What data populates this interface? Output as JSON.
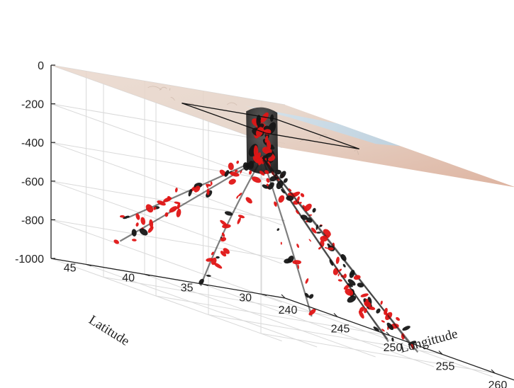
{
  "chart_data": {
    "type": "3d-surface-volume",
    "title": "",
    "xlabel": "Longittude",
    "ylabel": "Latitude",
    "zlabel": "",
    "xlim": [
      240,
      262
    ],
    "ylim": [
      28,
      48
    ],
    "zlim": [
      -1000,
      0
    ],
    "x_ticks": [
      "240",
      "245",
      "250",
      "255",
      "260"
    ],
    "y_ticks": [
      "30",
      "35",
      "40",
      "45"
    ],
    "z_ticks": [
      "0",
      "-200",
      "-400",
      "-600",
      "-800",
      "-1000"
    ],
    "x_tick_values": [
      240,
      245,
      250,
      255,
      260
    ],
    "y_tick_values": [
      30,
      35,
      40,
      45
    ],
    "z_tick_values": [
      0,
      -200,
      -400,
      -600,
      -800,
      -1000
    ],
    "grid": true,
    "surface": {
      "z": 0,
      "colormap": "terrain-relief",
      "land": "#e6c8b6",
      "sea": "#bcdcef"
    },
    "region_box": {
      "lon": [
        248,
        256
      ],
      "lat": [
        36,
        44
      ],
      "z": 0
    },
    "isosurface_colors": {
      "high": "#e01515",
      "low": "#161616"
    },
    "plume_root": {
      "lon": 249,
      "lat": 38,
      "z": -200
    },
    "plume_arms": [
      {
        "lon": 244,
        "lat": 45,
        "z": -680
      },
      {
        "lon": 241,
        "lat": 43,
        "z": -840
      },
      {
        "lon": 242,
        "lat": 37,
        "z": -990
      },
      {
        "lon": 247,
        "lat": 32,
        "z": -1000
      },
      {
        "lon": 252,
        "lat": 30,
        "z": -1000
      },
      {
        "lon": 256,
        "lat": 31,
        "z": -1000
      },
      {
        "lon": 259,
        "lat": 34,
        "z": -960
      },
      {
        "lon": 261,
        "lat": 38,
        "z": -920
      }
    ]
  }
}
